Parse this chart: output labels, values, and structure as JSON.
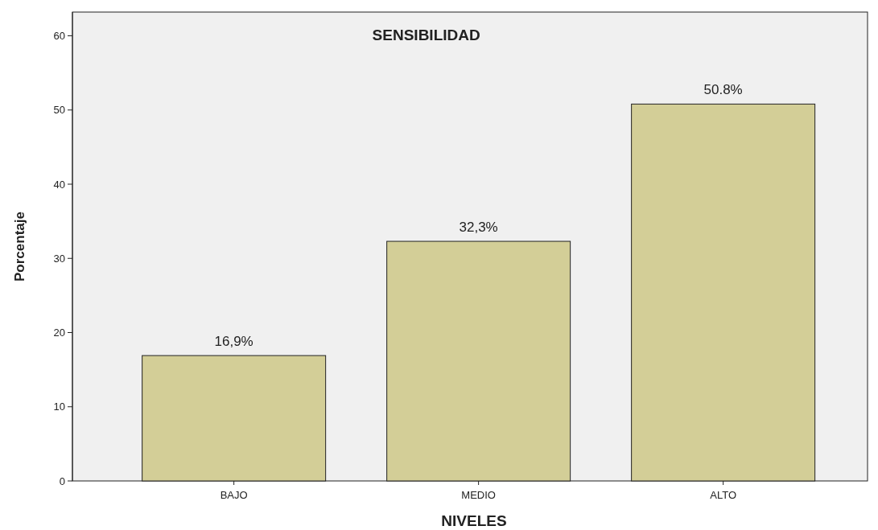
{
  "chart_data": {
    "type": "bar",
    "title": "SENSIBILIDAD",
    "xlabel": "NIVELES",
    "ylabel": "Porcentaje",
    "categories": [
      "BAJO",
      "MEDIO",
      "ALTO"
    ],
    "values": [
      16.9,
      32.3,
      50.8
    ],
    "value_labels": [
      "16,9%",
      "32,3%",
      "50.8%"
    ],
    "color": "#d3ce97",
    "ylim": [
      0,
      63.2
    ],
    "yticks": [
      0,
      10,
      20,
      30,
      40,
      50,
      60
    ],
    "grid": false
  }
}
